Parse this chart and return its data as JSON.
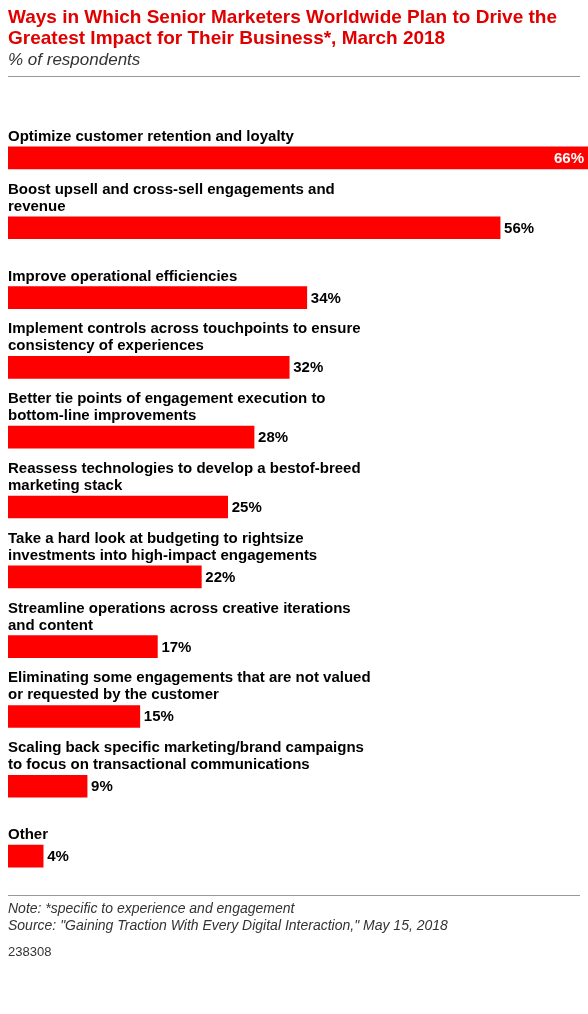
{
  "chart_data": {
    "type": "bar",
    "orientation": "horizontal",
    "title": "Ways in Which Senior Marketers Worldwide Plan to Drive the Greatest Impact for Their Business*, March 2018",
    "subtitle": "% of respondents",
    "categories": [
      "Optimize customer retention and loyalty",
      "Boost upsell and cross-sell engagements and revenue",
      "Improve operational efficiencies",
      "Implement controls across touchpoints to ensure consistency of experiences",
      "Better tie points of engagement execution to bottom-line improvements",
      "Reassess technologies to develop a bestof-breed marketing stack",
      "Take a hard look at budgeting to rightsize investments into high-impact engagements",
      "Streamline operations across creative iterations and content",
      "Eliminating some engagements that are not valued or requested by the customer",
      "Scaling back specific marketing/brand campaigns to focus on transactional communications",
      "Other"
    ],
    "values": [
      66,
      56,
      34,
      32,
      28,
      25,
      22,
      17,
      15,
      9,
      4
    ],
    "value_labels": [
      "66%",
      "56%",
      "34%",
      "32%",
      "28%",
      "25%",
      "22%",
      "17%",
      "15%",
      "9%",
      "4%"
    ],
    "color": "#ff0000",
    "legend": false,
    "tick_labels": false,
    "annotations": [
      "Note: *specific to experience and engagement",
      "Source: \"Gaining Traction With Every Digital Interaction,\" May 15, 2018",
      "238308"
    ]
  }
}
